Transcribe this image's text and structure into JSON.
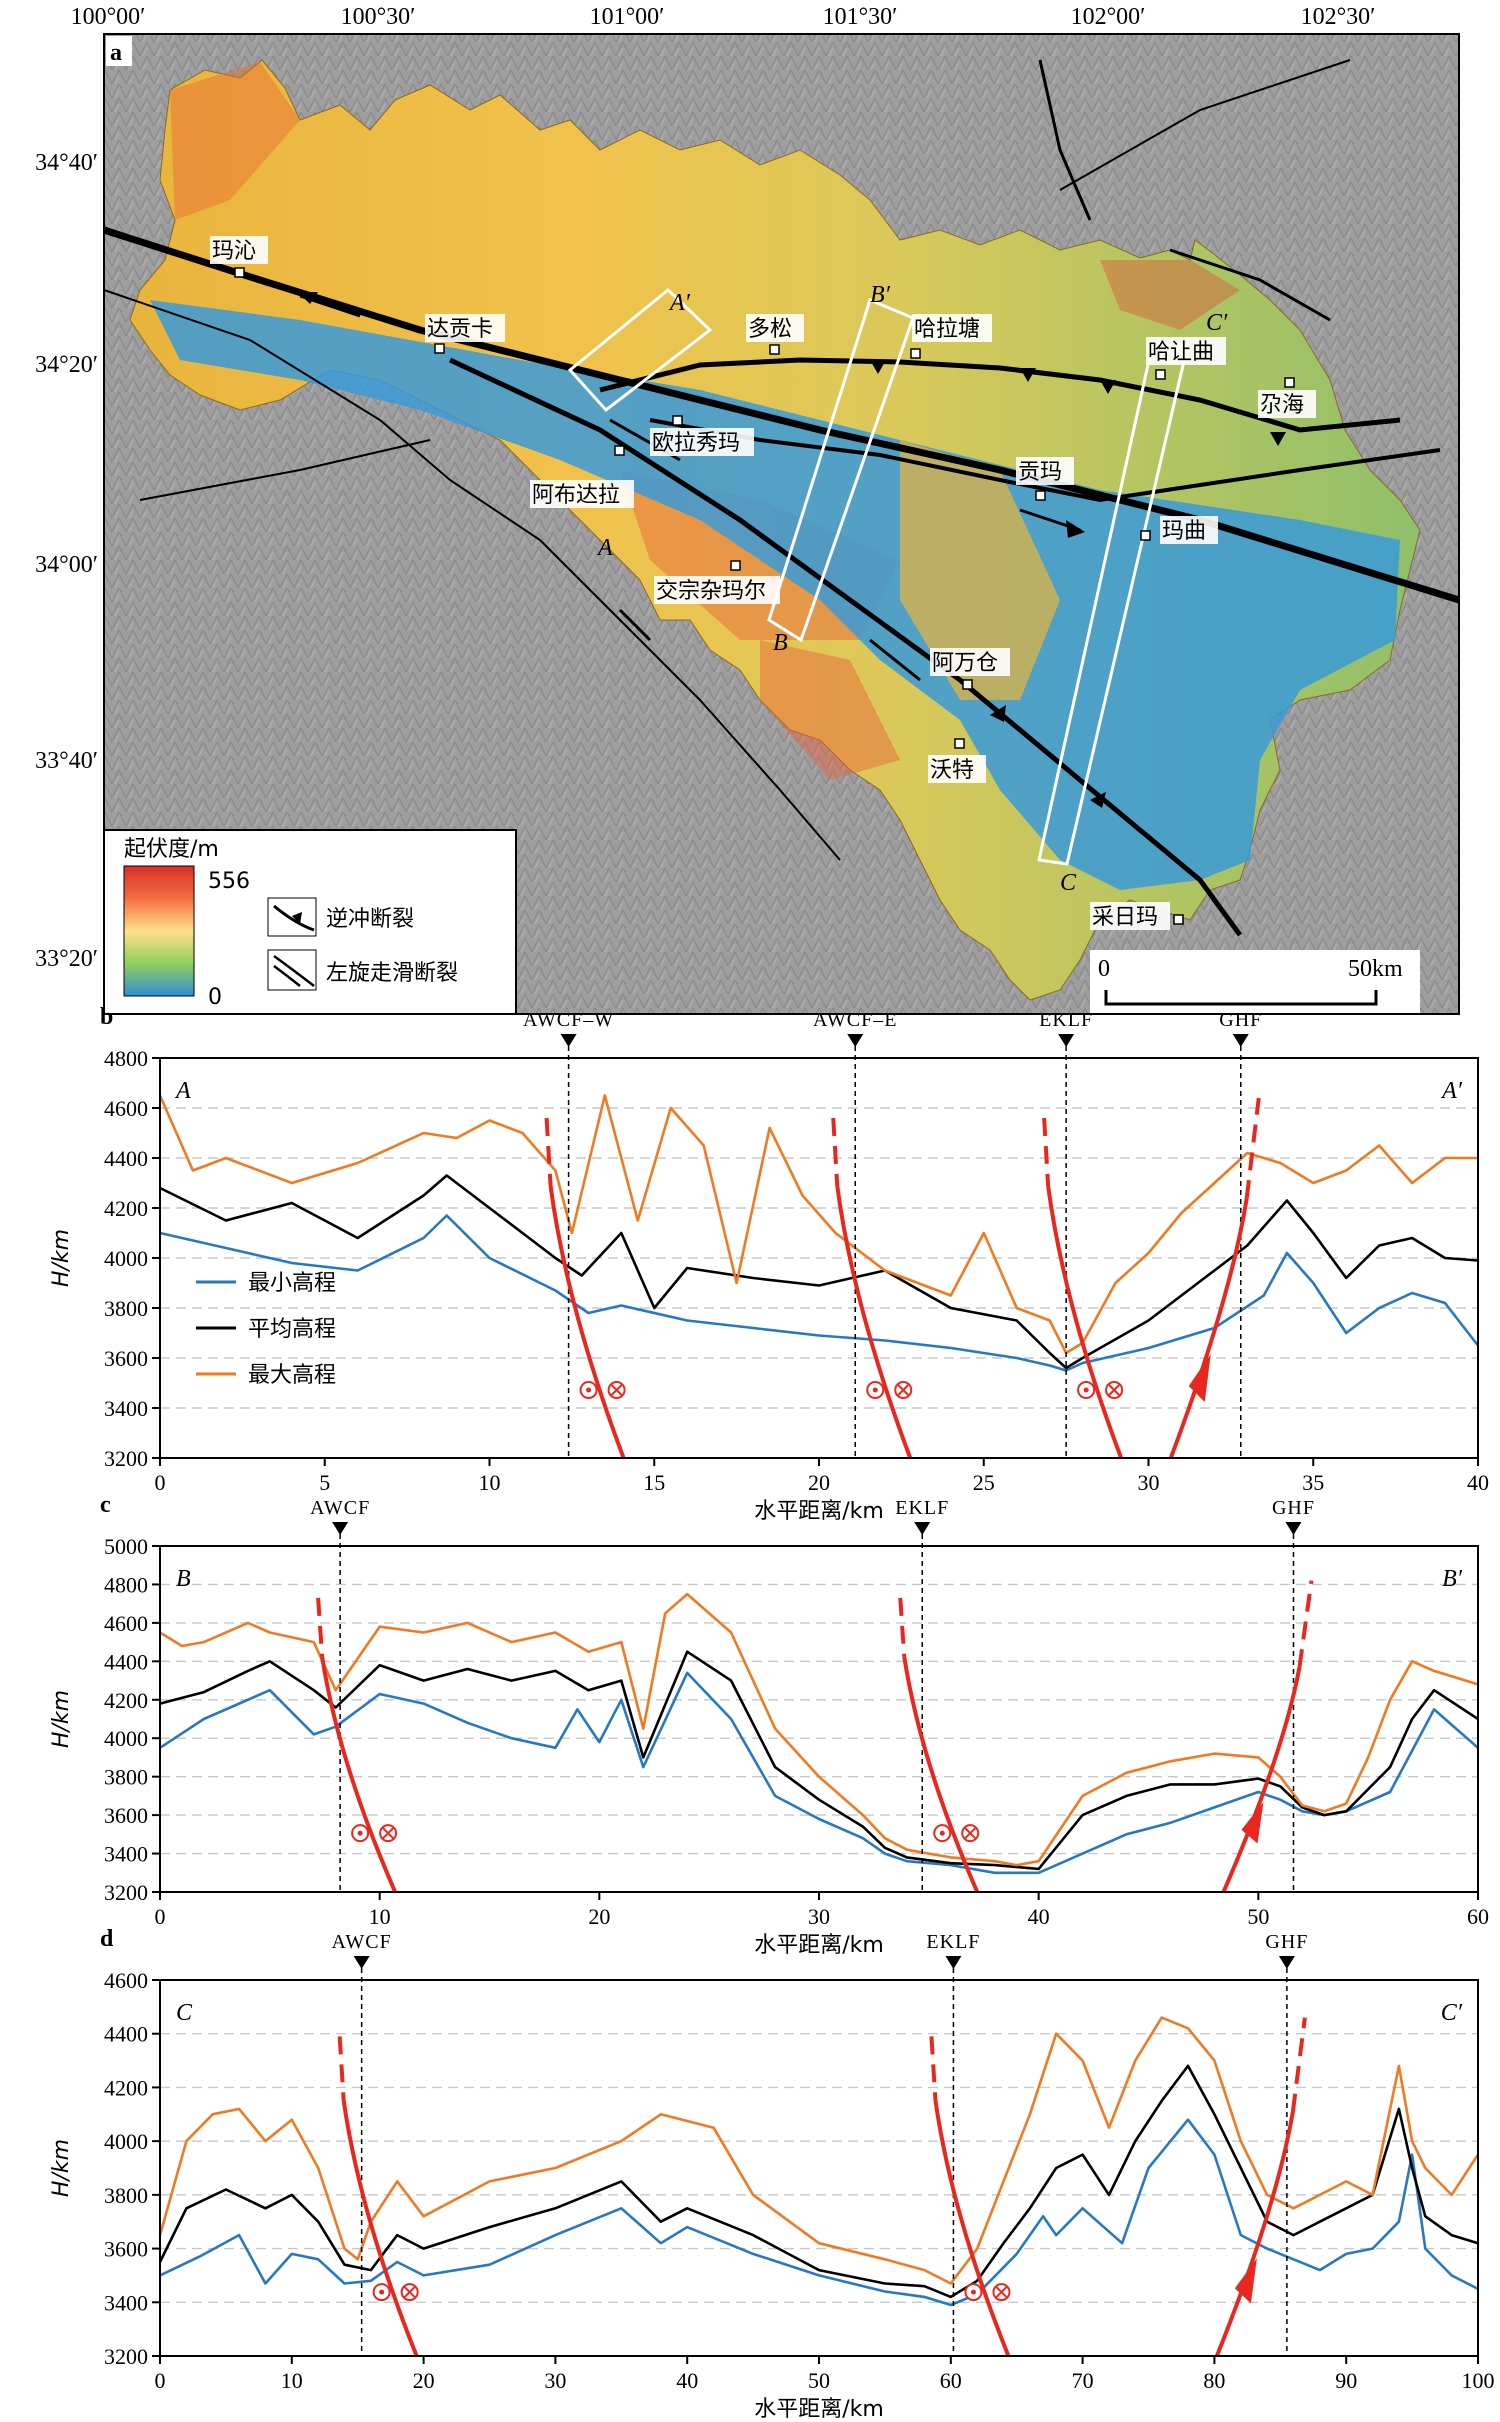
{
  "colors": {
    "min": "#2878c0",
    "mean": "#000000",
    "max": "#ee7a22",
    "fault": "#e8281e"
  },
  "map": {
    "panel": "a",
    "lon_labels": [
      "100°00′",
      "100°30′",
      "101°00′",
      "101°30′",
      "102°00′",
      "102°30′"
    ],
    "lat_labels": [
      "34°40′",
      "34°20′",
      "34°00′",
      "33°40′",
      "33°20′"
    ],
    "places": [
      "玛沁",
      "达贡卡",
      "多松",
      "哈拉塘",
      "哈让曲",
      "尕海",
      "欧拉秀玛",
      "阿布达拉",
      "贡玛",
      "玛曲",
      "交宗杂玛尔",
      "阿万仓",
      "沃特",
      "采日玛"
    ],
    "profile_labels": [
      "A",
      "A′",
      "B",
      "B′",
      "C",
      "C′"
    ],
    "legend": {
      "title": "起伏度/m",
      "max": "556",
      "min": "0",
      "thrust": "逆冲断裂",
      "strike_slip": "左旋走滑断裂"
    },
    "scale": {
      "zero": "0",
      "end": "50km"
    }
  },
  "chart_data": [
    {
      "type": "line",
      "panel": "b",
      "start": "A",
      "end": "A′",
      "xlabel": "水平距离/km",
      "ylabel": "H/km",
      "xlim": [
        0,
        40
      ],
      "ylim": [
        3200,
        4800
      ],
      "xticks": [
        0,
        5,
        10,
        15,
        20,
        25,
        30,
        35,
        40
      ],
      "yticks": [
        3200,
        3400,
        3600,
        3800,
        4000,
        4200,
        4400,
        4600,
        4800
      ],
      "faults": [
        {
          "name": "AWCF–W",
          "x": 12.4
        },
        {
          "name": "AWCF–E",
          "x": 21.1
        },
        {
          "name": "EKLF",
          "x": 27.5
        },
        {
          "name": "GHF",
          "x": 32.8
        }
      ],
      "series": [
        {
          "name": "最小高程",
          "x": [
            0,
            2,
            4,
            6,
            8,
            8.7,
            10,
            12,
            13,
            14,
            16,
            18,
            20,
            22,
            24,
            26,
            27,
            27.5,
            28,
            30,
            32,
            33.5,
            34.2,
            35,
            36,
            37,
            38,
            39,
            40
          ],
          "y": [
            4100,
            4040,
            3980,
            3950,
            4080,
            4170,
            4000,
            3870,
            3780,
            3810,
            3750,
            3720,
            3690,
            3670,
            3640,
            3600,
            3570,
            3550,
            3580,
            3640,
            3720,
            3850,
            4020,
            3900,
            3700,
            3800,
            3860,
            3820,
            3650
          ]
        },
        {
          "name": "平均高程",
          "x": [
            0,
            2,
            4,
            6,
            8,
            8.7,
            10,
            12,
            12.8,
            14,
            15,
            16,
            18,
            20,
            22,
            24,
            26,
            27,
            27.5,
            28,
            30,
            32,
            33,
            34.2,
            35,
            36,
            37,
            38,
            39,
            40
          ],
          "y": [
            4280,
            4150,
            4220,
            4080,
            4250,
            4330,
            4200,
            4000,
            3930,
            4100,
            3800,
            3960,
            3920,
            3890,
            3950,
            3800,
            3750,
            3620,
            3560,
            3600,
            3750,
            3950,
            4050,
            4230,
            4100,
            3920,
            4050,
            4080,
            4000,
            3990
          ]
        },
        {
          "name": "最大高程",
          "x": [
            0,
            1,
            2,
            4,
            6,
            8,
            9,
            10,
            11,
            12,
            12.5,
            13.5,
            14.5,
            15.5,
            16.5,
            17.5,
            18.5,
            19.5,
            20.5,
            22,
            24,
            25,
            26,
            27,
            27.5,
            28,
            29,
            30,
            31,
            32,
            33,
            34,
            35,
            36,
            37,
            38,
            39,
            40
          ],
          "y": [
            4650,
            4350,
            4400,
            4300,
            4380,
            4500,
            4480,
            4550,
            4500,
            4350,
            4100,
            4650,
            4150,
            4600,
            4450,
            3900,
            4520,
            4250,
            4100,
            3950,
            3850,
            4100,
            3800,
            3750,
            3620,
            3660,
            3900,
            4020,
            4180,
            4300,
            4420,
            4380,
            4300,
            4350,
            4450,
            4300,
            4400,
            4400
          ]
        }
      ]
    },
    {
      "type": "line",
      "panel": "c",
      "start": "B",
      "end": "B′",
      "xlabel": "水平距离/km",
      "ylabel": "H/km",
      "xlim": [
        0,
        60
      ],
      "ylim": [
        3200,
        5000
      ],
      "xticks": [
        0,
        10,
        20,
        30,
        40,
        50,
        60
      ],
      "yticks": [
        3200,
        3400,
        3600,
        3800,
        4000,
        4200,
        4400,
        4600,
        4800,
        5000
      ],
      "faults": [
        {
          "name": "AWCF",
          "x": 8.2
        },
        {
          "name": "EKLF",
          "x": 34.7
        },
        {
          "name": "GHF",
          "x": 51.6
        }
      ],
      "series": [
        {
          "name": "最小高程",
          "x": [
            0,
            2,
            5,
            7,
            8,
            10,
            12,
            14,
            16,
            18,
            19,
            20,
            21,
            22,
            24,
            26,
            28,
            30,
            32,
            33,
            34,
            36,
            38,
            40,
            42,
            44,
            46,
            48,
            50,
            51,
            52,
            53,
            54,
            56,
            58,
            59,
            60
          ],
          "y": [
            3950,
            4100,
            4250,
            4020,
            4060,
            4230,
            4180,
            4080,
            4000,
            3950,
            4150,
            3980,
            4200,
            3850,
            4340,
            4100,
            3700,
            3580,
            3480,
            3400,
            3360,
            3340,
            3300,
            3300,
            3400,
            3500,
            3560,
            3640,
            3720,
            3680,
            3620,
            3600,
            3620,
            3720,
            4150,
            4050,
            3950
          ]
        },
        {
          "name": "平均高程",
          "x": [
            0,
            2,
            4,
            5,
            7,
            8,
            10,
            12,
            14,
            16,
            18,
            19.5,
            21,
            22,
            24,
            26,
            28,
            30,
            32,
            33,
            34,
            36,
            38,
            40,
            42,
            44,
            46,
            48,
            50,
            51,
            52,
            53,
            54,
            56,
            57,
            58,
            60
          ],
          "y": [
            4180,
            4240,
            4350,
            4400,
            4250,
            4160,
            4380,
            4300,
            4360,
            4300,
            4350,
            4250,
            4300,
            3900,
            4450,
            4300,
            3850,
            3680,
            3540,
            3430,
            3380,
            3350,
            3340,
            3320,
            3600,
            3700,
            3760,
            3760,
            3790,
            3750,
            3640,
            3600,
            3620,
            3850,
            4100,
            4250,
            4100
          ]
        },
        {
          "name": "最大高程",
          "x": [
            0,
            1,
            2,
            4,
            5,
            7,
            8,
            10,
            12,
            14,
            16,
            18,
            19.5,
            21,
            22,
            23,
            24,
            26,
            28,
            30,
            32,
            33,
            34,
            35,
            36,
            38,
            39,
            40,
            42,
            44,
            46,
            48,
            50,
            51,
            52,
            53,
            54,
            55,
            56,
            57,
            58,
            60
          ],
          "y": [
            4550,
            4480,
            4500,
            4600,
            4550,
            4500,
            4250,
            4580,
            4550,
            4600,
            4500,
            4550,
            4450,
            4500,
            4050,
            4650,
            4750,
            4550,
            4050,
            3800,
            3600,
            3480,
            3420,
            3400,
            3380,
            3360,
            3340,
            3360,
            3700,
            3820,
            3880,
            3920,
            3900,
            3800,
            3650,
            3620,
            3660,
            3900,
            4200,
            4400,
            4350,
            4280
          ]
        }
      ]
    },
    {
      "type": "line",
      "panel": "d",
      "start": "C",
      "end": "C′",
      "xlabel": "水平距离/km",
      "ylabel": "H/km",
      "xlim": [
        0,
        100
      ],
      "ylim": [
        3200,
        4600
      ],
      "xticks": [
        0,
        10,
        20,
        30,
        40,
        50,
        60,
        70,
        80,
        90,
        100
      ],
      "yticks": [
        3200,
        3400,
        3600,
        3800,
        4000,
        4200,
        4400,
        4600
      ],
      "faults": [
        {
          "name": "AWCF",
          "x": 15.3
        },
        {
          "name": "EKLF",
          "x": 60.2
        },
        {
          "name": "GHF",
          "x": 85.5
        }
      ],
      "series": [
        {
          "name": "最小高程",
          "x": [
            0,
            3,
            6,
            8,
            10,
            12,
            14,
            16,
            18,
            20,
            25,
            30,
            35,
            38,
            40,
            45,
            50,
            55,
            58,
            60,
            62,
            65,
            67,
            68,
            70,
            73,
            75,
            78,
            80,
            82,
            84,
            86,
            88,
            90,
            92,
            94,
            95,
            96,
            98,
            100
          ],
          "y": [
            3500,
            3570,
            3650,
            3470,
            3580,
            3560,
            3470,
            3480,
            3550,
            3500,
            3540,
            3650,
            3750,
            3620,
            3680,
            3580,
            3500,
            3440,
            3420,
            3390,
            3430,
            3580,
            3720,
            3650,
            3750,
            3620,
            3900,
            4080,
            3950,
            3650,
            3600,
            3560,
            3520,
            3580,
            3600,
            3700,
            3950,
            3600,
            3500,
            3450
          ]
        },
        {
          "name": "平均高程",
          "x": [
            0,
            2,
            5,
            8,
            10,
            12,
            14,
            16,
            18,
            20,
            25,
            30,
            35,
            38,
            40,
            45,
            50,
            55,
            58,
            60,
            62,
            64,
            66,
            68,
            70,
            72,
            74,
            76,
            78,
            80,
            82,
            84,
            86,
            88,
            90,
            92,
            94,
            95,
            96,
            98,
            100
          ],
          "y": [
            3550,
            3750,
            3820,
            3750,
            3800,
            3700,
            3540,
            3520,
            3650,
            3600,
            3680,
            3750,
            3850,
            3700,
            3750,
            3650,
            3520,
            3470,
            3460,
            3420,
            3480,
            3620,
            3750,
            3900,
            3950,
            3800,
            4000,
            4150,
            4280,
            4100,
            3900,
            3700,
            3650,
            3700,
            3750,
            3800,
            4120,
            3900,
            3720,
            3650,
            3620
          ]
        },
        {
          "name": "最大高程",
          "x": [
            0,
            2,
            4,
            6,
            8,
            10,
            12,
            14,
            15,
            16,
            18,
            20,
            25,
            30,
            35,
            38,
            42,
            45,
            50,
            55,
            58,
            60,
            62,
            64,
            66,
            68,
            70,
            72,
            74,
            76,
            78,
            80,
            82,
            84,
            86,
            88,
            90,
            92,
            94,
            95,
            96,
            98,
            100
          ],
          "y": [
            3650,
            4000,
            4100,
            4120,
            4000,
            4080,
            3900,
            3600,
            3560,
            3700,
            3850,
            3720,
            3850,
            3900,
            4000,
            4100,
            4050,
            3800,
            3620,
            3560,
            3520,
            3470,
            3600,
            3850,
            4100,
            4400,
            4300,
            4050,
            4300,
            4460,
            4420,
            4300,
            4000,
            3800,
            3750,
            3800,
            3850,
            3800,
            4280,
            4000,
            3900,
            3800,
            3950
          ]
        }
      ]
    }
  ]
}
